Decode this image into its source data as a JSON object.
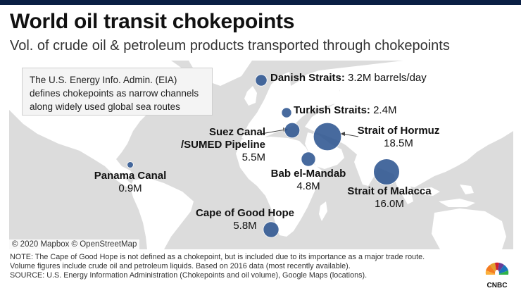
{
  "title": "World oil transit chokepoints",
  "subtitle": "Vol. of crude oil & petroleum products transported through chokepoints",
  "infobox": {
    "line1": "The U.S. Energy Info. Admin. (EIA)",
    "line2": "defines chokepoints as narrow channels",
    "line3": "along widely used global sea routes"
  },
  "chokepoints": [
    {
      "key": "danish",
      "name": "Danish Straits:",
      "value": "3.2M barrels/day",
      "volume_mbd": 3.2
    },
    {
      "key": "turkish",
      "name": "Turkish Straits:",
      "value": "2.4M",
      "volume_mbd": 2.4
    },
    {
      "key": "suez",
      "name_line1": "Suez Canal",
      "name_line2": "/SUMED Pipeline",
      "value": "5.5M",
      "volume_mbd": 5.5
    },
    {
      "key": "hormuz",
      "name": "Strait of Hormuz",
      "value": "18.5M",
      "volume_mbd": 18.5
    },
    {
      "key": "panama",
      "name": "Panama Canal",
      "value": "0.9M",
      "volume_mbd": 0.9
    },
    {
      "key": "bab",
      "name": "Bab el-Mandab",
      "value": "4.8M",
      "volume_mbd": 4.8
    },
    {
      "key": "malacca",
      "name": "Strait of Malacca",
      "value": "16.0M",
      "volume_mbd": 16.0
    },
    {
      "key": "cape",
      "name": "Cape of Good Hope",
      "value": "5.8M",
      "volume_mbd": 5.8
    }
  ],
  "map_credit": "© 2020 Mapbox © OpenStreetMap",
  "footer": {
    "line1": "NOTE: The Cape of Good Hope is not defined as a chokepoint, but is included due to its importance as a major trade route.",
    "line2": "Volume figures include crude oil and petroleum liquids. Based on 2016 data (most recently available).",
    "line3": "SOURCE: U.S. Energy Information Administration (Chokepoints and oil volume), Google Maps (locations)."
  },
  "logo_text": "CNBC",
  "colors": {
    "marker": "#2d5591",
    "land": "#ffffff",
    "water": "#dcdcdc",
    "topbar": "#0a1f44"
  }
}
